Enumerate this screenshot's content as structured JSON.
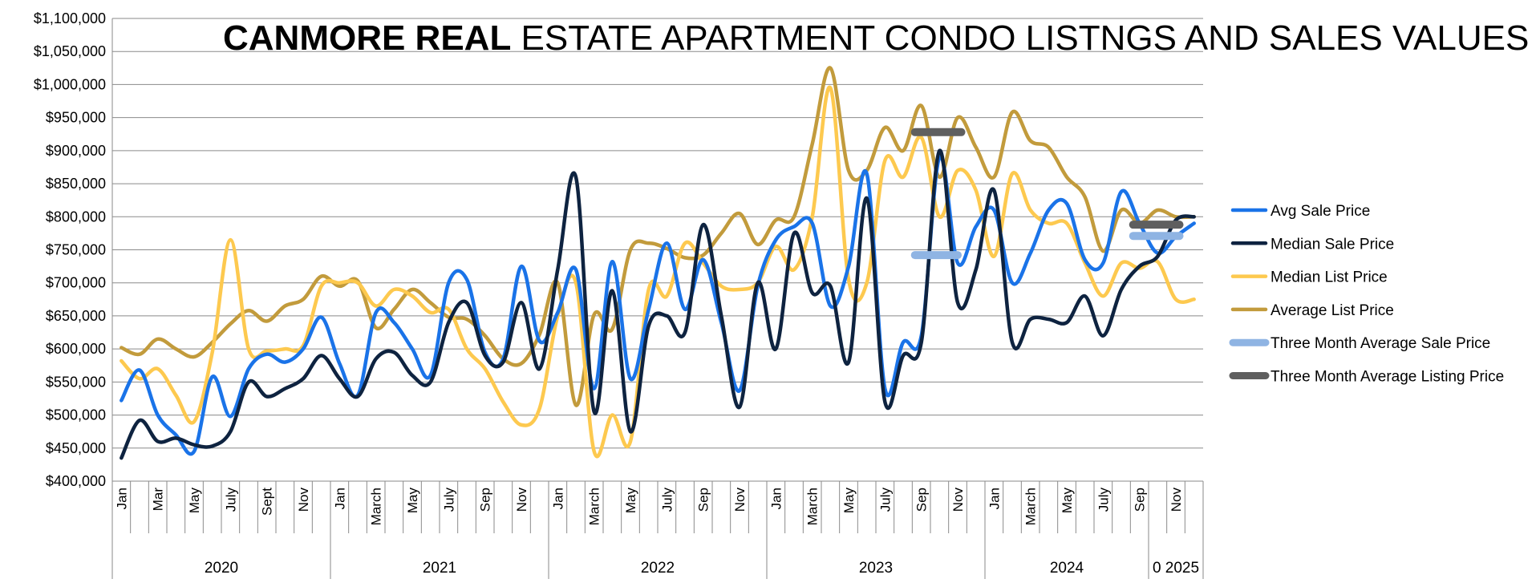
{
  "chart_data": {
    "type": "line",
    "title_bold": "CANMORE REAL",
    "title_rest": " ESTATE  APARTMENT CONDO LISTNGS AND SALES VALUES",
    "ylim": [
      400000,
      1100000
    ],
    "ytick_values": [
      400000,
      450000,
      500000,
      550000,
      600000,
      650000,
      700000,
      750000,
      800000,
      850000,
      900000,
      950000,
      1000000,
      1050000,
      1100000
    ],
    "ytick_labels": [
      "$400,000",
      "$450,000",
      "$500,000",
      "$550,000",
      "$600,000",
      "$650,000",
      "$700,000",
      "$750,000",
      "$800,000",
      "$850,000",
      "$900,000",
      "$950,000",
      "$1,000,000",
      "$1,050,000",
      "$1,100,000"
    ],
    "month_labels": [
      "Jan",
      "Mar",
      "May",
      "July",
      "Sept",
      "Nov",
      "Jan",
      "March",
      "May",
      "July",
      "Sep",
      "Nov",
      "Jan",
      "March",
      "May",
      "July",
      "Sep",
      "Nov",
      "Jan",
      "March",
      "May",
      "July",
      "Sep",
      "Nov",
      "Jan",
      "March",
      "May",
      "July",
      "Sep",
      "Nov"
    ],
    "month_label_index": [
      0,
      2,
      4,
      6,
      8,
      10,
      12,
      14,
      16,
      18,
      20,
      22,
      24,
      26,
      28,
      30,
      32,
      34,
      36,
      38,
      40,
      42,
      44,
      46,
      48,
      50,
      52,
      54,
      56,
      58
    ],
    "year_groups": [
      {
        "label": "2020",
        "start": 0,
        "end": 12
      },
      {
        "label": "2021",
        "start": 12,
        "end": 24
      },
      {
        "label": "2022",
        "start": 24,
        "end": 36
      },
      {
        "label": "2023",
        "start": 36,
        "end": 48
      },
      {
        "label": "2024",
        "start": 48,
        "end": 57
      },
      {
        "label": "0 2025",
        "start": 57,
        "end": 60
      }
    ],
    "series": [
      {
        "name": "Avg Sale Price",
        "color": "#1a73e8",
        "values": [
          522000,
          568000,
          500000,
          470000,
          445000,
          558000,
          498000,
          570000,
          592000,
          580000,
          600000,
          648000,
          578000,
          530000,
          655000,
          640000,
          600000,
          560000,
          700000,
          705000,
          595000,
          585000,
          725000,
          612000,
          655000,
          720000,
          540000,
          732000,
          555000,
          660000,
          760000,
          660000,
          735000,
          640000,
          537000,
          695000,
          765000,
          785000,
          790000,
          665000,
          725000,
          865000,
          540000,
          610000,
          620000,
          890000,
          730000,
          785000,
          810000,
          700000,
          745000,
          810000,
          820000,
          735000,
          730000,
          838000,
          790000,
          745000,
          770000,
          790000
        ]
      },
      {
        "name": "Median Sale Price",
        "color": "#0e2340",
        "values": [
          435000,
          492000,
          460000,
          465000,
          455000,
          453000,
          475000,
          550000,
          528000,
          540000,
          555000,
          590000,
          555000,
          528000,
          585000,
          595000,
          560000,
          550000,
          640000,
          670000,
          590000,
          580000,
          670000,
          570000,
          720000,
          860000,
          505000,
          688000,
          475000,
          635000,
          650000,
          625000,
          788000,
          650000,
          512000,
          700000,
          600000,
          775000,
          685000,
          695000,
          580000,
          828000,
          520000,
          590000,
          610000,
          900000,
          670000,
          720000,
          840000,
          610000,
          645000,
          645000,
          640000,
          680000,
          620000,
          690000,
          725000,
          740000,
          795000,
          800000
        ]
      },
      {
        "name": "Median List Price",
        "color": "#fdc94f",
        "values": [
          582000,
          555000,
          570000,
          530000,
          490000,
          595000,
          765000,
          600000,
          597000,
          600000,
          605000,
          695000,
          700000,
          700000,
          665000,
          690000,
          680000,
          655000,
          660000,
          600000,
          570000,
          520000,
          485000,
          510000,
          650000,
          700000,
          445000,
          500000,
          460000,
          690000,
          680000,
          760000,
          730000,
          695000,
          690000,
          700000,
          755000,
          720000,
          800000,
          995000,
          705000,
          700000,
          885000,
          860000,
          920000,
          800000,
          870000,
          840000,
          740000,
          865000,
          810000,
          790000,
          790000,
          730000,
          680000,
          730000,
          722000,
          732000,
          675000,
          675000
        ]
      },
      {
        "name": "Average List Price",
        "color": "#c29b3c",
        "values": [
          602000,
          592000,
          615000,
          600000,
          588000,
          610000,
          638000,
          658000,
          642000,
          665000,
          675000,
          710000,
          695000,
          703000,
          632000,
          660000,
          690000,
          670000,
          648000,
          645000,
          620000,
          585000,
          578000,
          622000,
          700000,
          515000,
          652000,
          630000,
          750000,
          760000,
          752000,
          738000,
          742000,
          775000,
          805000,
          758000,
          795000,
          800000,
          910000,
          1025000,
          870000,
          870000,
          935000,
          900000,
          968000,
          860000,
          950000,
          905000,
          860000,
          958000,
          915000,
          905000,
          860000,
          830000,
          748000,
          810000,
          790000,
          810000,
          800000,
          800000
        ]
      }
    ],
    "averages": [
      {
        "name": "Three Month Average Sale Price",
        "color": "#8fb4e3",
        "segments": [
          {
            "x_start": 44.0,
            "x_end": 46.0,
            "y": 742000
          },
          {
            "x_start": 56.0,
            "x_end": 58.2,
            "y": 771000
          }
        ]
      },
      {
        "name": "Three Month Average Listing Price",
        "color": "#5f5f5f",
        "segments": [
          {
            "x_start": 44.0,
            "x_end": 46.2,
            "y": 928000
          },
          {
            "x_start": 56.0,
            "x_end": 58.2,
            "y": 788000
          }
        ]
      }
    ],
    "legend_position": "right",
    "grid": "horizontal"
  }
}
